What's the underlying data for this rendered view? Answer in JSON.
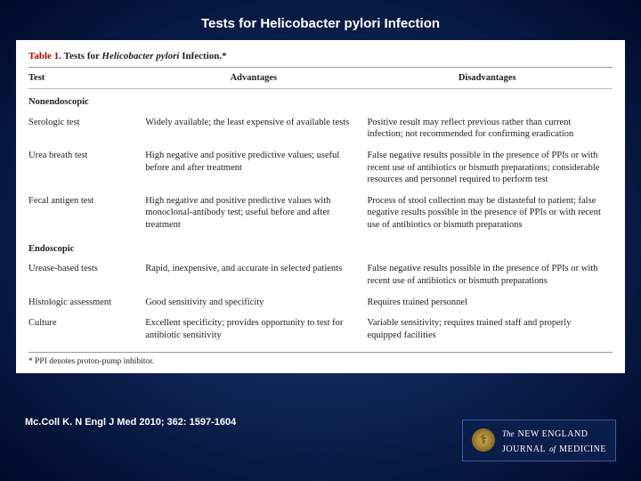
{
  "slide": {
    "title": "Tests for Helicobacter pylori Infection",
    "citation": "Mc.Coll K. N Engl J Med 2010; 362: 1597-1604"
  },
  "table": {
    "caption_label": "Table 1.",
    "caption_text_pre": "Tests for ",
    "caption_em": "Helicobacter pylori",
    "caption_text_post": " Infection.*",
    "columns": [
      "Test",
      "Advantages",
      "Disadvantages"
    ],
    "sections": [
      {
        "heading": "Nonendoscopic",
        "rows": [
          {
            "test": "Serologic test",
            "adv": "Widely available; the least expensive of available tests",
            "dis": "Positive result may reflect previous rather than current infection; not recommended for confirming eradication"
          },
          {
            "test": "Urea breath test",
            "adv": "High negative and positive predictive values; useful before and after treatment",
            "dis": "False negative results possible in the presence of PPIs or with recent use of antibiotics or bismuth preparations; considerable resources and personnel required to perform test"
          },
          {
            "test": "Fecal antigen test",
            "adv": "High negative and positive predictive values with monoclonal-antibody test; useful before and after treatment",
            "dis": "Process of stool collection may be distasteful to patient; false negative results possible in the presence of PPIs or with recent use of antibiotics or bismuth preparations"
          }
        ]
      },
      {
        "heading": "Endoscopic",
        "rows": [
          {
            "test": "Urease-based tests",
            "adv": "Rapid, inexpensive, and accurate in selected patients",
            "dis": "False negative results possible in the presence of PPIs or with recent use of antibiotics or bismuth preparations"
          },
          {
            "test": "Histologic assessment",
            "adv": "Good sensitivity and specificity",
            "dis": "Requires trained personnel"
          },
          {
            "test": "Culture",
            "adv": "Excellent specificity; provides opportunity to test for antibiotic sensitivity",
            "dis": "Variable sensitivity; requires trained staff and properly equipped facilities"
          }
        ]
      }
    ],
    "footnote": "* PPI denotes proton-pump inhibitor."
  },
  "journal": {
    "the": "The",
    "line1": "NEW ENGLAND",
    "line2_pre": "JOURNAL",
    "line2_of": "of",
    "line2_post": "MEDICINE",
    "seal_glyph": "⚕"
  },
  "colors": {
    "bg_center": "#1a3a7a",
    "bg_edge": "#000a2a",
    "caption_red": "#b00000",
    "border": "#999999"
  }
}
